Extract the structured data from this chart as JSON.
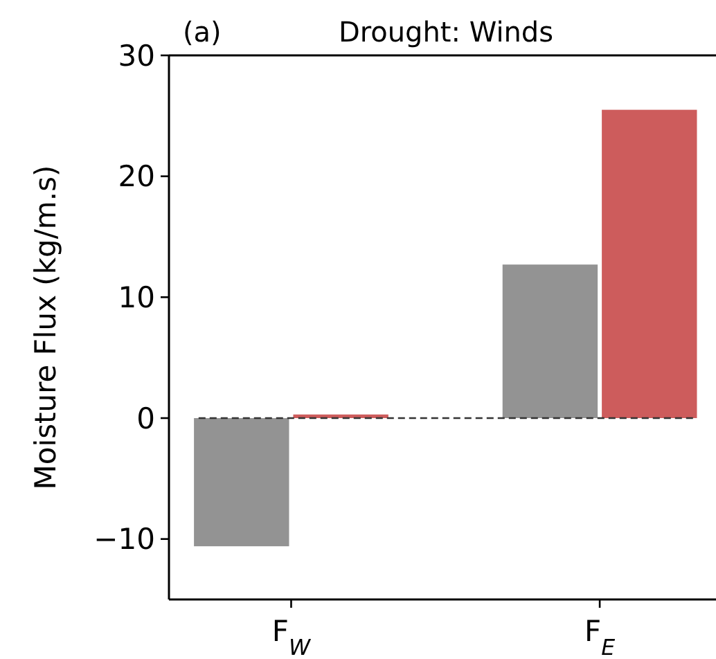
{
  "chart_data": {
    "type": "bar",
    "title": "Drought: Winds",
    "annotations": [
      "(a)"
    ],
    "ylabel": "Moisture Flux (kg/m.s)",
    "categories": [
      "F$_{W}$",
      "F$_{E}$"
    ],
    "series": [
      {
        "color": "#939393",
        "values": [
          -10.6,
          12.7
        ]
      },
      {
        "color": "#cd5c5c",
        "values": [
          0.3,
          25.5
        ]
      }
    ],
    "ylim": [
      -15,
      30
    ],
    "yticks": [
      -10,
      0,
      10,
      20,
      30
    ],
    "ref_lines": [
      {
        "axis": "y",
        "value": 0,
        "line_style": "dashed",
        "color": "#333333"
      }
    ]
  }
}
